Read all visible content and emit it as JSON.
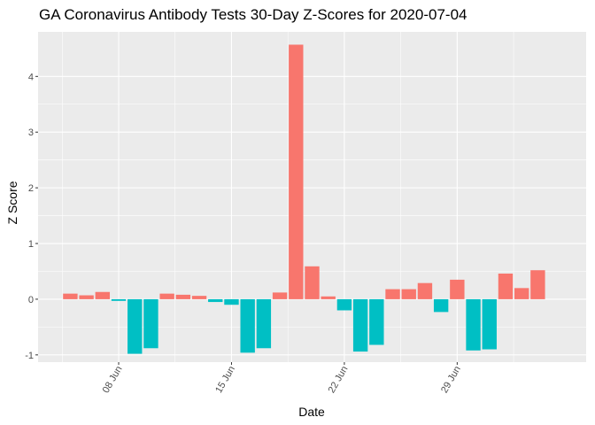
{
  "chart_data": {
    "type": "bar",
    "title": "GA Coronavirus Antibody Tests 30-Day Z-Scores for 2020-07-04",
    "xlabel": "Date",
    "ylabel": "Z Score",
    "x_ticks": [
      {
        "label": "08 Jun",
        "date": "2020-06-08"
      },
      {
        "label": "15 Jun",
        "date": "2020-06-15"
      },
      {
        "label": "22 Jun",
        "date": "2020-06-22"
      },
      {
        "label": "29 Jun",
        "date": "2020-06-29"
      }
    ],
    "y_ticks": [
      -1,
      0,
      1,
      2,
      3,
      4
    ],
    "ylim": [
      -1.13,
      4.8
    ],
    "xlim": [
      "2020-06-03",
      "2020-07-07"
    ],
    "grid": true,
    "colors": {
      "positive": "#F8766D",
      "negative": "#00BFC4",
      "panel": "#EBEBEB",
      "grid": "#FFFFFF"
    },
    "x": [
      "2020-06-05",
      "2020-06-06",
      "2020-06-07",
      "2020-06-08",
      "2020-06-09",
      "2020-06-10",
      "2020-06-11",
      "2020-06-12",
      "2020-06-13",
      "2020-06-14",
      "2020-06-15",
      "2020-06-16",
      "2020-06-17",
      "2020-06-18",
      "2020-06-19",
      "2020-06-20",
      "2020-06-21",
      "2020-06-22",
      "2020-06-23",
      "2020-06-24",
      "2020-06-25",
      "2020-06-26",
      "2020-06-27",
      "2020-06-28",
      "2020-06-29",
      "2020-06-30",
      "2020-07-01",
      "2020-07-02",
      "2020-07-03",
      "2020-07-04"
    ],
    "values": [
      0.1,
      0.07,
      0.13,
      -0.03,
      -0.98,
      -0.88,
      0.1,
      0.08,
      0.06,
      -0.05,
      -0.1,
      -0.96,
      -0.88,
      0.12,
      4.57,
      0.59,
      0.05,
      -0.2,
      -0.94,
      -0.82,
      0.18,
      0.18,
      0.29,
      -0.23,
      0.35,
      -0.92,
      -0.9,
      0.46,
      0.2,
      0.52
    ]
  }
}
